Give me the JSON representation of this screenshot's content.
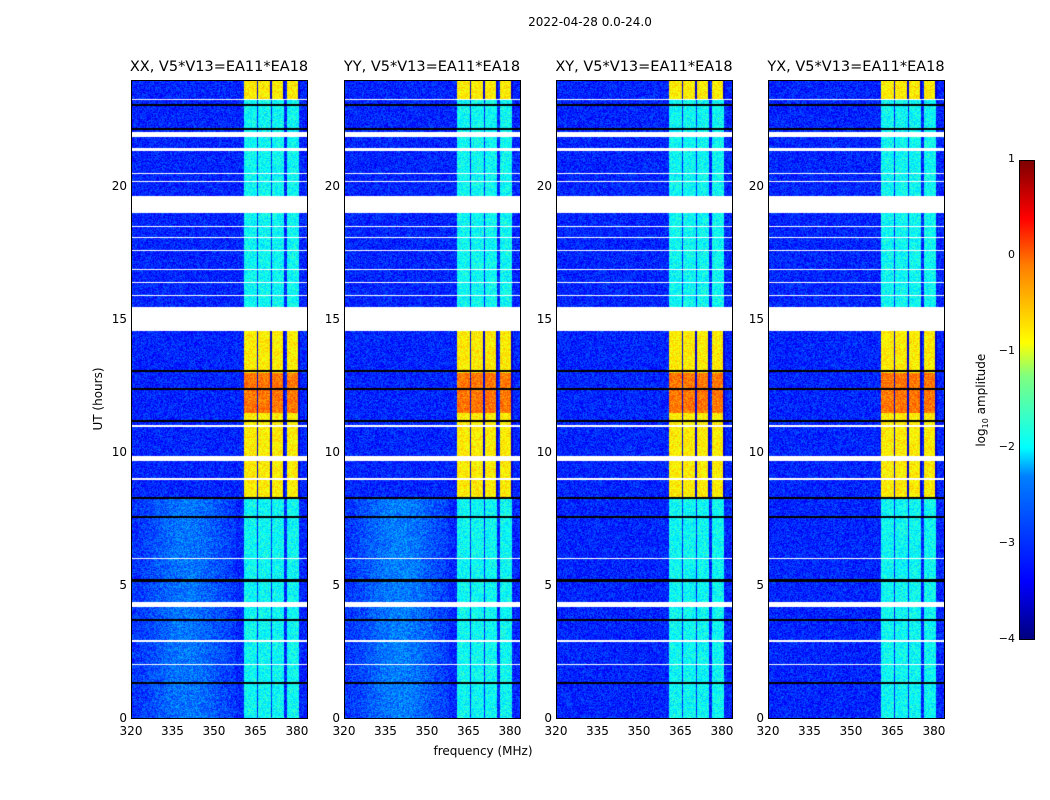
{
  "title": "2022-04-28 0.0-24.0",
  "chart_data": {
    "type": "heatmap",
    "title": "2022-04-28 0.0-24.0",
    "panels": [
      {
        "title": "XX, V5*V13=EA11*EA18",
        "background_offset": 0.4
      },
      {
        "title": "YY, V5*V13=EA11*EA18",
        "background_offset": 0.45
      },
      {
        "title": "XY, V5*V13=EA11*EA18",
        "background_offset": 0
      },
      {
        "title": "YX, V5*V13=EA11*EA18",
        "background_offset": 0
      }
    ],
    "xlabel": "frequency (MHz)",
    "ylabel": "UT (hours)",
    "xlim": [
      320,
      384
    ],
    "ylim": [
      0,
      24
    ],
    "xticks": [
      "320",
      "335",
      "350",
      "365",
      "380"
    ],
    "xtick_values": [
      320,
      335,
      350,
      365,
      380
    ],
    "yticks": [
      "0",
      "5",
      "10",
      "15",
      "20"
    ],
    "ytick_values": [
      0,
      5,
      10,
      15,
      20
    ],
    "colorbar": {
      "label": "log",
      "label_sub": "10",
      "label_rest": " amplitude",
      "range": [
        -4,
        1
      ],
      "ticks": [
        "1",
        "0",
        "−1",
        "−2",
        "−3",
        "−4"
      ],
      "tick_values": [
        1,
        0,
        -1,
        -2,
        -3,
        -4
      ],
      "colormap": "jet"
    },
    "background_level": -3.2,
    "rfi_subbands_mhz": [
      [
        360.6,
        365.7
      ],
      [
        366,
        370.7
      ],
      [
        371,
        375.4
      ],
      [
        376.5,
        380.8
      ]
    ],
    "rfi_strong_hours": [
      [
        8.3,
        14.6
      ],
      [
        23.3,
        24
      ]
    ],
    "rfi_strong_level": -0.8,
    "rfi_weak_level": -2.1,
    "flagged_hours": [
      [
        23.3,
        23.35
      ],
      [
        21.9,
        22.1
      ],
      [
        21.4,
        21.5
      ],
      [
        20.5,
        20.55
      ],
      [
        20.2,
        20.25
      ],
      [
        19.06,
        19.7
      ],
      [
        18.5,
        18.55
      ],
      [
        18.1,
        18.15
      ],
      [
        17.6,
        17.65
      ],
      [
        16.9,
        16.95
      ],
      [
        16.4,
        16.45
      ],
      [
        15.9,
        15.95
      ],
      [
        14.6,
        15.5
      ],
      [
        11.0,
        11.05
      ],
      [
        9.7,
        9.9
      ],
      [
        9.0,
        9.05
      ],
      [
        6.0,
        6.05
      ],
      [
        4.2,
        4.4
      ],
      [
        2.9,
        2.95
      ],
      [
        2.0,
        2.05
      ]
    ],
    "black_rows_hours": [
      23.1,
      22.2,
      13.1,
      12.4,
      11.2,
      8.3,
      7.6,
      5.2,
      3.7,
      1.35
    ]
  }
}
